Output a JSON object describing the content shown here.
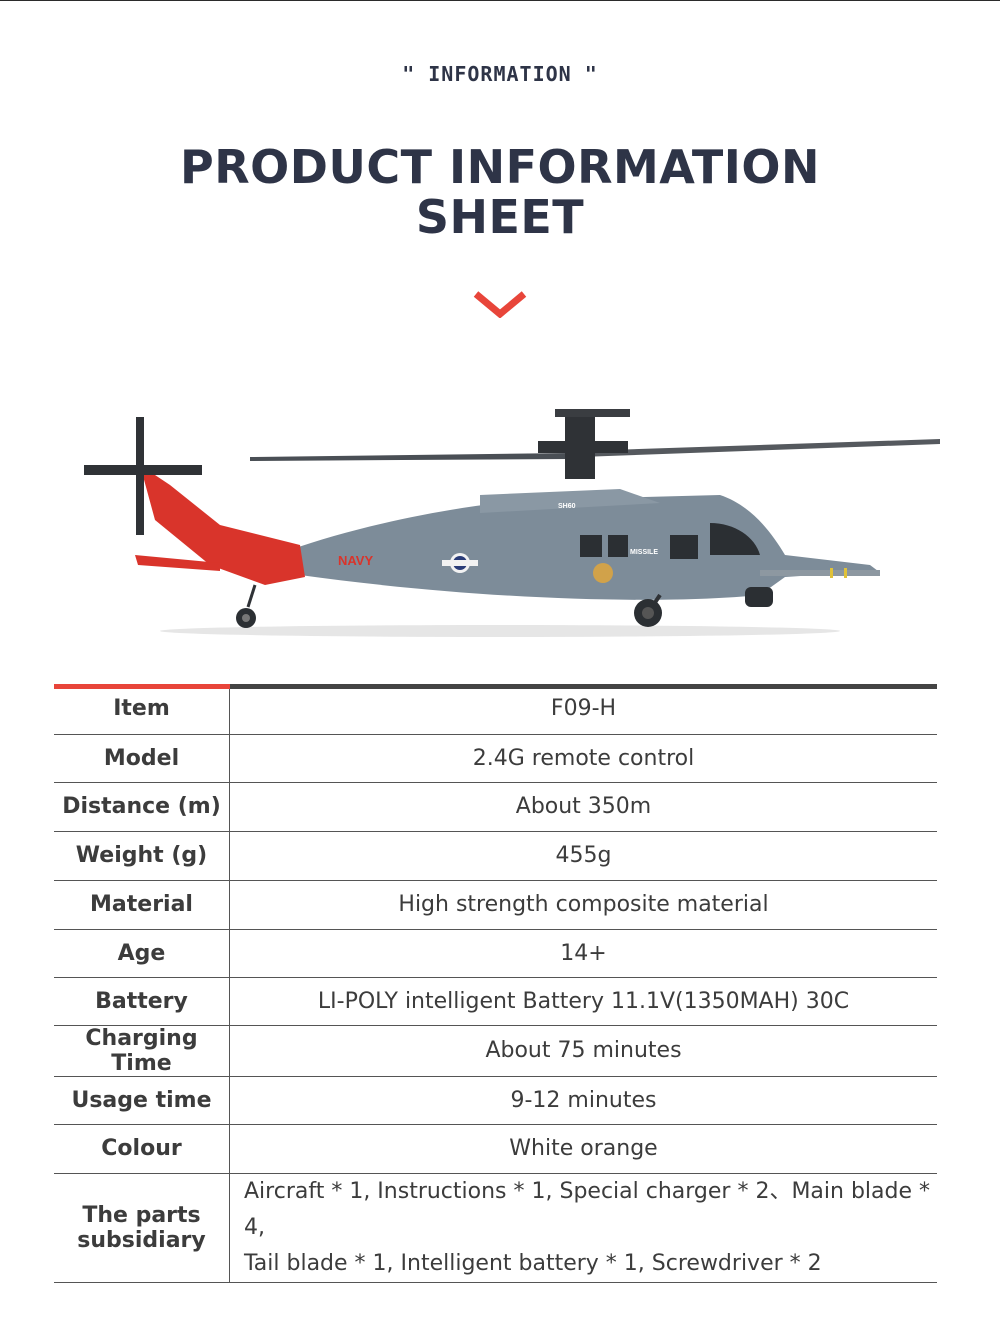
{
  "header": {
    "kicker": "\" INFORMATION \"",
    "title_line1": "PRODUCT INFORMATION",
    "title_line2": "SHEET"
  },
  "colors": {
    "accent": "#e8453a",
    "title": "#2e3447",
    "helicopter_body": "#7d8c99",
    "helicopter_tail": "#d9342b"
  },
  "helicopter": {
    "markings": {
      "navy": "NAVY",
      "model": "SH60",
      "missile": "MISSILE"
    }
  },
  "specs": [
    {
      "label": "Item",
      "value": "F09-H"
    },
    {
      "label": "Model",
      "value": "2.4G remote control"
    },
    {
      "label": "Distance (m)",
      "value": "About 350m"
    },
    {
      "label": "Weight (g)",
      "value": "455g"
    },
    {
      "label": "Material",
      "value": "High strength composite material"
    },
    {
      "label": "Age",
      "value": "14+"
    },
    {
      "label": "Battery",
      "value": "LI-POLY intelligent Battery  11.1V(1350MAH) 30C"
    },
    {
      "label": "Charging Time",
      "value": "About 75 minutes"
    },
    {
      "label": "Usage time",
      "value": "9-12 minutes"
    },
    {
      "label": "Colour",
      "value": "White orange"
    }
  ],
  "parts": {
    "label_line1": "The parts",
    "label_line2": "subsidiary",
    "line1": "Aircraft * 1, Instructions * 1, Special charger * 2、Main blade * 4,",
    "line2": "Tail blade * 1, Intelligent battery * 1, Screwdriver * 2"
  }
}
